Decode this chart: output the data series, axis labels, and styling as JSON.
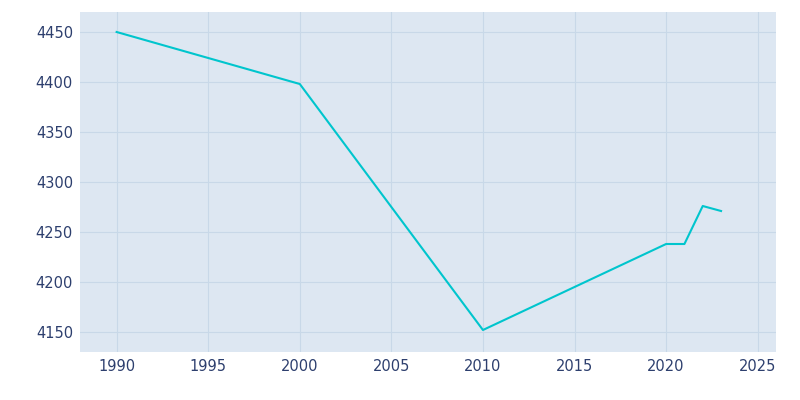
{
  "years": [
    1990,
    2000,
    2010,
    2020,
    2021,
    2022,
    2023
  ],
  "population": [
    4450,
    4398,
    4152,
    4238,
    4238,
    4276,
    4271
  ],
  "line_color": "#00C5CD",
  "background_color": "#dde7f2",
  "plot_background_color": "#dde7f2",
  "grid_color": "#c8d8e8",
  "xlim": [
    1988,
    2026
  ],
  "ylim": [
    4130,
    4470
  ],
  "xticks": [
    1990,
    1995,
    2000,
    2005,
    2010,
    2015,
    2020,
    2025
  ],
  "yticks": [
    4150,
    4200,
    4250,
    4300,
    4350,
    4400,
    4450
  ],
  "tick_color": "#2d3f6e",
  "tick_fontsize": 10.5,
  "linewidth": 1.5
}
